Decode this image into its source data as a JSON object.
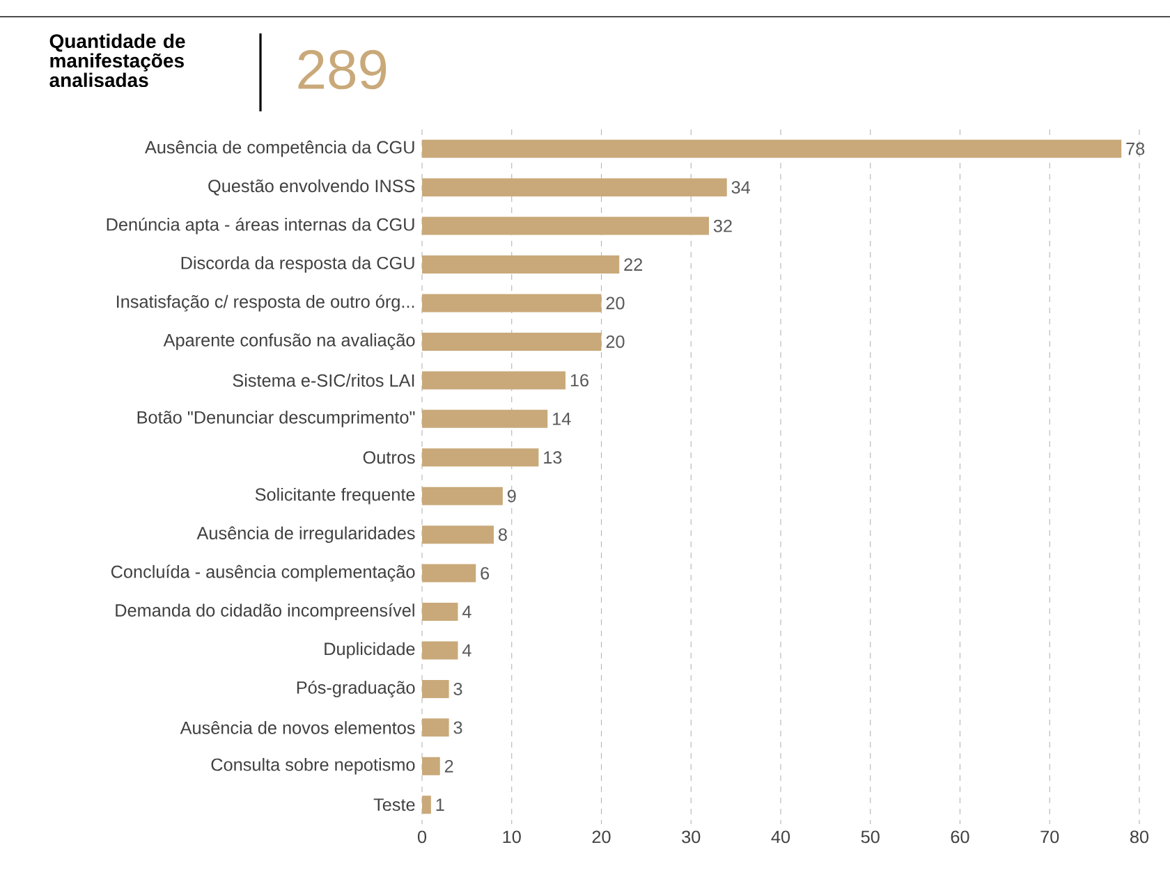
{
  "chart_data": {
    "type": "bar",
    "orientation": "horizontal",
    "title": "Quantidade de manifestações analisadas",
    "annotations": [
      "289"
    ],
    "categories": [
      "Ausência de competência da CGU",
      "Questão envolvendo INSS",
      "Denúncia apta - áreas internas da CGU",
      "Discorda da resposta da CGU",
      "Insatisfação c/ resposta de outro órg...",
      "Aparente confusão na avaliação",
      "Sistema e-SIC/ritos LAI",
      "Botão \"Denunciar descumprimento\"",
      "Outros",
      "Solicitante frequente",
      "Ausência de irregularidades",
      "Concluída - ausência complementação",
      "Demanda do cidadão incompreensível",
      "Duplicidade",
      "Pós-graduação",
      "Ausência de novos elementos",
      "Consulta sobre nepotismo",
      "Teste"
    ],
    "values": [
      78,
      34,
      32,
      22,
      20,
      20,
      16,
      14,
      13,
      9,
      8,
      6,
      4,
      4,
      3,
      3,
      2,
      1
    ],
    "color": "#c9a97a",
    "data_labels": true,
    "grid": "x",
    "xlim": [
      0,
      80
    ],
    "xticks": [
      0,
      10,
      20,
      30,
      40,
      50,
      60,
      70,
      80
    ]
  }
}
